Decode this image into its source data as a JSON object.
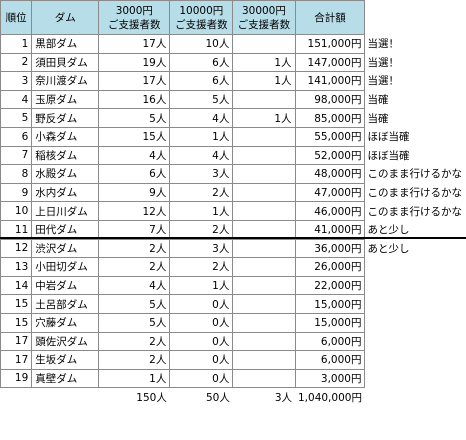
{
  "headers": {
    "rank": "順位",
    "dam": "ダム",
    "tier3000_line1": "3000円",
    "tier3000_line2": "ご支援者数",
    "tier10000_line1": "10000円",
    "tier10000_line2": "ご支援者数",
    "tier30000_line1": "30000円",
    "tier30000_line2": "ご支援者数",
    "total": "合計額"
  },
  "rows": [
    {
      "rank": "1",
      "dam": "黒部ダム",
      "c3000": "17人",
      "c10000": "10人",
      "c30000": "",
      "total": "151,000円",
      "note": "当選！"
    },
    {
      "rank": "2",
      "dam": "須田貝ダム",
      "c3000": "19人",
      "c10000": "6人",
      "c30000": "1人",
      "total": "147,000円",
      "note": "当選！"
    },
    {
      "rank": "3",
      "dam": "奈川渡ダム",
      "c3000": "17人",
      "c10000": "6人",
      "c30000": "1人",
      "total": "141,000円",
      "note": "当選！"
    },
    {
      "rank": "4",
      "dam": "玉原ダム",
      "c3000": "16人",
      "c10000": "5人",
      "c30000": "",
      "total": "98,000円",
      "note": "当確"
    },
    {
      "rank": "5",
      "dam": "野反ダム",
      "c3000": "5人",
      "c10000": "4人",
      "c30000": "1人",
      "total": "85,000円",
      "note": "当確"
    },
    {
      "rank": "6",
      "dam": "小森ダム",
      "c3000": "15人",
      "c10000": "1人",
      "c30000": "",
      "total": "55,000円",
      "note": "ほぼ当確"
    },
    {
      "rank": "7",
      "dam": "稲核ダム",
      "c3000": "4人",
      "c10000": "4人",
      "c30000": "",
      "total": "52,000円",
      "note": "ほぼ当確"
    },
    {
      "rank": "8",
      "dam": "水殿ダム",
      "c3000": "6人",
      "c10000": "3人",
      "c30000": "",
      "total": "48,000円",
      "note": "このまま行けるかな"
    },
    {
      "rank": "9",
      "dam": "水内ダム",
      "c3000": "9人",
      "c10000": "2人",
      "c30000": "",
      "total": "47,000円",
      "note": "このまま行けるかな"
    },
    {
      "rank": "10",
      "dam": "上日川ダム",
      "c3000": "12人",
      "c10000": "1人",
      "c30000": "",
      "total": "46,000円",
      "note": "このまま行けるかな"
    },
    {
      "rank": "11",
      "dam": "田代ダム",
      "c3000": "7人",
      "c10000": "2人",
      "c30000": "",
      "total": "41,000円",
      "note": "あと少し"
    },
    {
      "rank": "12",
      "dam": "渋沢ダム",
      "c3000": "2人",
      "c10000": "3人",
      "c30000": "",
      "total": "36,000円",
      "note": "あと少し"
    },
    {
      "rank": "13",
      "dam": "小田切ダム",
      "c3000": "2人",
      "c10000": "2人",
      "c30000": "",
      "total": "26,000円",
      "note": ""
    },
    {
      "rank": "14",
      "dam": "中岩ダム",
      "c3000": "4人",
      "c10000": "1人",
      "c30000": "",
      "total": "22,000円",
      "note": ""
    },
    {
      "rank": "15",
      "dam": "土呂部ダム",
      "c3000": "5人",
      "c10000": "0人",
      "c30000": "",
      "total": "15,000円",
      "note": ""
    },
    {
      "rank": "15",
      "dam": "穴藤ダム",
      "c3000": "5人",
      "c10000": "0人",
      "c30000": "",
      "total": "15,000円",
      "note": ""
    },
    {
      "rank": "17",
      "dam": "頭佐沢ダム",
      "c3000": "2人",
      "c10000": "0人",
      "c30000": "",
      "total": "6,000円",
      "note": ""
    },
    {
      "rank": "17",
      "dam": "生坂ダム",
      "c3000": "2人",
      "c10000": "0人",
      "c30000": "",
      "total": "6,000円",
      "note": ""
    },
    {
      "rank": "19",
      "dam": "真壁ダム",
      "c3000": "1人",
      "c10000": "0人",
      "c30000": "",
      "total": "3,000円",
      "note": ""
    }
  ],
  "totals": {
    "c3000": "150人",
    "c10000": "50人",
    "c30000": "3人",
    "total": "1,040,000円"
  },
  "colors": {
    "header_bg": "#b7dde8",
    "grid": "#8a8a8a",
    "cutoff_line": "#000000"
  }
}
